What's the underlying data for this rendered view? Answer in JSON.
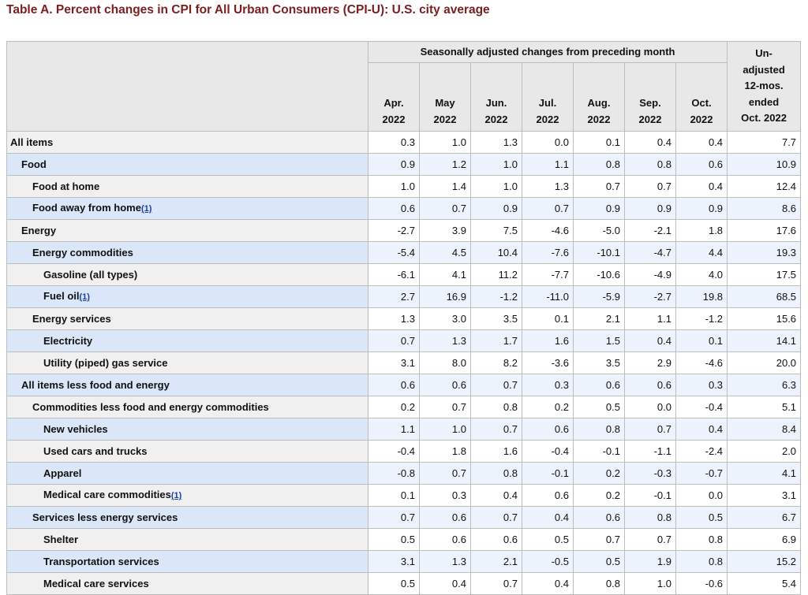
{
  "title": "Table A. Percent changes in CPI for All Urban Consumers (CPI-U): U.S. city average",
  "header": {
    "group": "Seasonally adjusted changes from preceding month",
    "months": [
      {
        "month": "Apr.",
        "year": "2022"
      },
      {
        "month": "May",
        "year": "2022"
      },
      {
        "month": "Jun.",
        "year": "2022"
      },
      {
        "month": "Jul.",
        "year": "2022"
      },
      {
        "month": "Aug.",
        "year": "2022"
      },
      {
        "month": "Sep.",
        "year": "2022"
      },
      {
        "month": "Oct.",
        "year": "2022"
      }
    ],
    "unadjusted": [
      "Un-",
      "adjusted",
      "12-mos.",
      "ended",
      "Oct. 2022"
    ]
  },
  "rows": [
    {
      "label": "All items",
      "level": 0,
      "note": "",
      "values": [
        "0.3",
        "1.0",
        "1.3",
        "0.0",
        "0.1",
        "0.4",
        "0.4",
        "7.7"
      ]
    },
    {
      "label": "Food",
      "level": 1,
      "note": "",
      "values": [
        "0.9",
        "1.2",
        "1.0",
        "1.1",
        "0.8",
        "0.8",
        "0.6",
        "10.9"
      ]
    },
    {
      "label": "Food at home",
      "level": 2,
      "note": "",
      "values": [
        "1.0",
        "1.4",
        "1.0",
        "1.3",
        "0.7",
        "0.7",
        "0.4",
        "12.4"
      ]
    },
    {
      "label": "Food away from home",
      "level": 2,
      "note": "(1)",
      "values": [
        "0.6",
        "0.7",
        "0.9",
        "0.7",
        "0.9",
        "0.9",
        "0.9",
        "8.6"
      ]
    },
    {
      "label": "Energy",
      "level": 1,
      "note": "",
      "values": [
        "-2.7",
        "3.9",
        "7.5",
        "-4.6",
        "-5.0",
        "-2.1",
        "1.8",
        "17.6"
      ]
    },
    {
      "label": "Energy commodities",
      "level": 2,
      "note": "",
      "values": [
        "-5.4",
        "4.5",
        "10.4",
        "-7.6",
        "-10.1",
        "-4.7",
        "4.4",
        "19.3"
      ]
    },
    {
      "label": "Gasoline (all types)",
      "level": 3,
      "note": "",
      "values": [
        "-6.1",
        "4.1",
        "11.2",
        "-7.7",
        "-10.6",
        "-4.9",
        "4.0",
        "17.5"
      ]
    },
    {
      "label": "Fuel oil",
      "level": 3,
      "note": "(1)",
      "values": [
        "2.7",
        "16.9",
        "-1.2",
        "-11.0",
        "-5.9",
        "-2.7",
        "19.8",
        "68.5"
      ]
    },
    {
      "label": "Energy services",
      "level": 2,
      "note": "",
      "values": [
        "1.3",
        "3.0",
        "3.5",
        "0.1",
        "2.1",
        "1.1",
        "-1.2",
        "15.6"
      ]
    },
    {
      "label": "Electricity",
      "level": 3,
      "note": "",
      "values": [
        "0.7",
        "1.3",
        "1.7",
        "1.6",
        "1.5",
        "0.4",
        "0.1",
        "14.1"
      ]
    },
    {
      "label": "Utility (piped) gas service",
      "level": 3,
      "note": "",
      "values": [
        "3.1",
        "8.0",
        "8.2",
        "-3.6",
        "3.5",
        "2.9",
        "-4.6",
        "20.0"
      ]
    },
    {
      "label": "All items less food and energy",
      "level": 1,
      "note": "",
      "values": [
        "0.6",
        "0.6",
        "0.7",
        "0.3",
        "0.6",
        "0.6",
        "0.3",
        "6.3"
      ]
    },
    {
      "label": "Commodities less food and energy commodities",
      "level": 2,
      "note": "",
      "values": [
        "0.2",
        "0.7",
        "0.8",
        "0.2",
        "0.5",
        "0.0",
        "-0.4",
        "5.1"
      ]
    },
    {
      "label": "New vehicles",
      "level": 3,
      "note": "",
      "values": [
        "1.1",
        "1.0",
        "0.7",
        "0.6",
        "0.8",
        "0.7",
        "0.4",
        "8.4"
      ]
    },
    {
      "label": "Used cars and trucks",
      "level": 3,
      "note": "",
      "values": [
        "-0.4",
        "1.8",
        "1.6",
        "-0.4",
        "-0.1",
        "-1.1",
        "-2.4",
        "2.0"
      ]
    },
    {
      "label": "Apparel",
      "level": 3,
      "note": "",
      "values": [
        "-0.8",
        "0.7",
        "0.8",
        "-0.1",
        "0.2",
        "-0.3",
        "-0.7",
        "4.1"
      ]
    },
    {
      "label": "Medical care commodities",
      "level": 3,
      "note": "(1)",
      "values": [
        "0.1",
        "0.3",
        "0.4",
        "0.6",
        "0.2",
        "-0.1",
        "0.0",
        "3.1"
      ]
    },
    {
      "label": "Services less energy services",
      "level": 2,
      "note": "",
      "values": [
        "0.7",
        "0.6",
        "0.7",
        "0.4",
        "0.6",
        "0.8",
        "0.5",
        "6.7"
      ]
    },
    {
      "label": "Shelter",
      "level": 3,
      "note": "",
      "values": [
        "0.5",
        "0.6",
        "0.6",
        "0.5",
        "0.7",
        "0.7",
        "0.8",
        "6.9"
      ]
    },
    {
      "label": "Transportation services",
      "level": 3,
      "note": "",
      "values": [
        "3.1",
        "1.3",
        "2.1",
        "-0.5",
        "0.5",
        "1.9",
        "0.8",
        "15.2"
      ]
    },
    {
      "label": "Medical care services",
      "level": 3,
      "note": "",
      "values": [
        "0.5",
        "0.4",
        "0.7",
        "0.4",
        "0.8",
        "1.0",
        "-0.6",
        "5.4"
      ]
    }
  ]
}
